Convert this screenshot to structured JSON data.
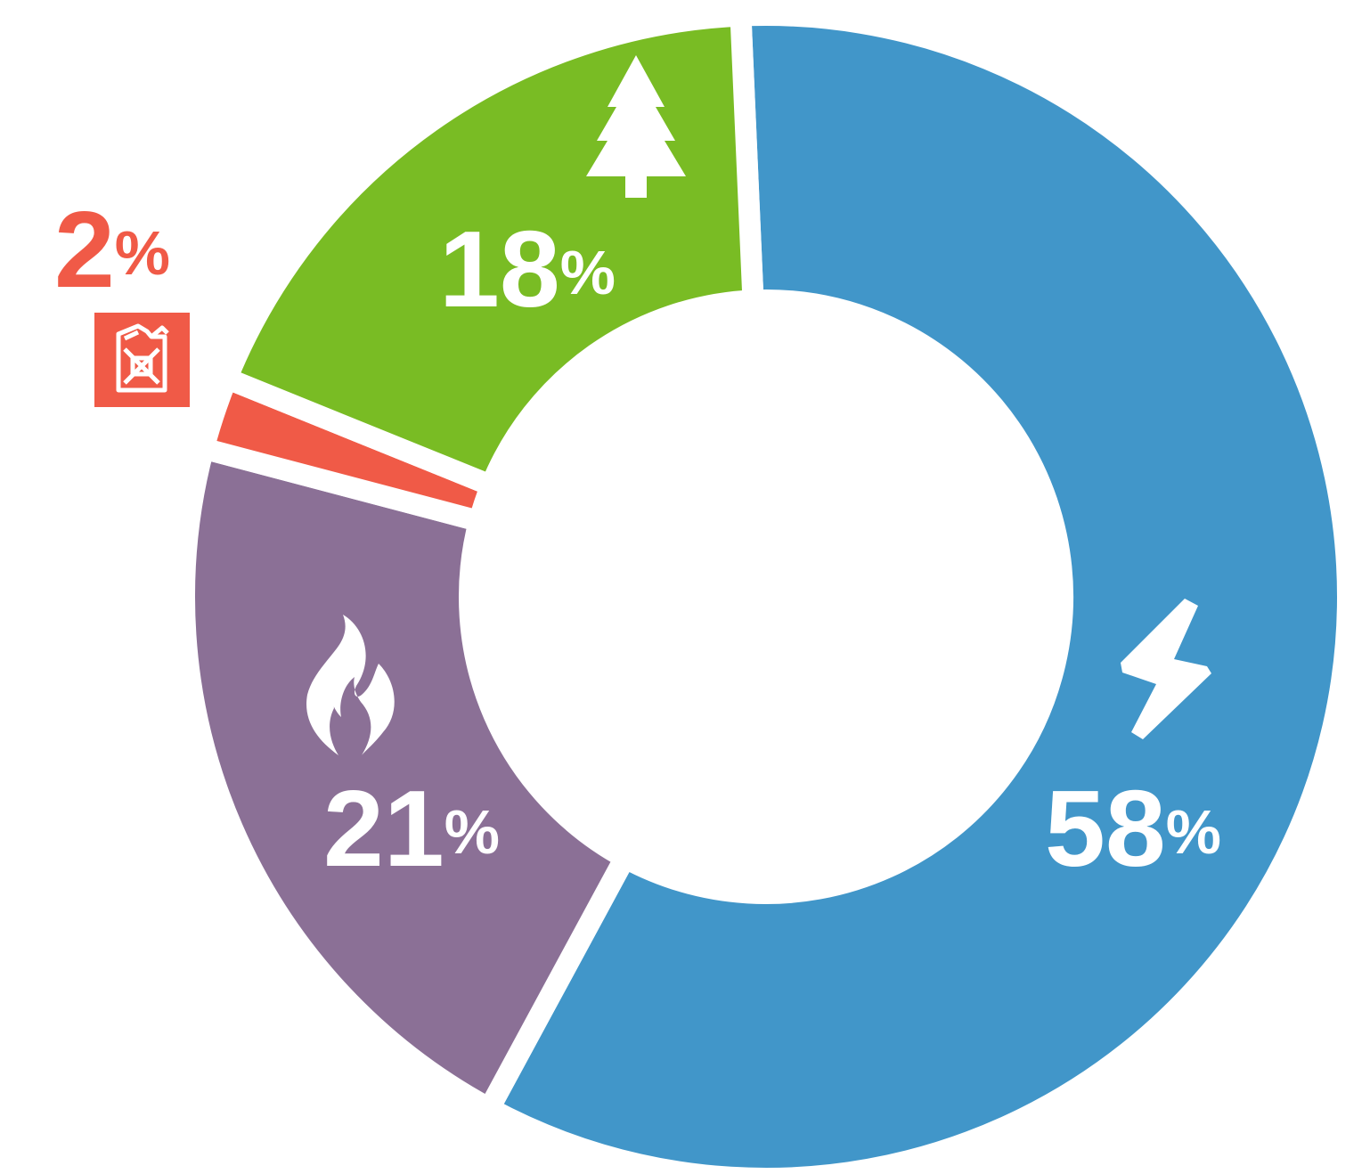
{
  "chart_data": {
    "type": "donut",
    "values": [
      58,
      21,
      2,
      18
    ],
    "value_labels": [
      "58%",
      "21%",
      "2%",
      "18%"
    ],
    "colors": [
      "#4196c9",
      "#8b7096",
      "#f05a47",
      "#79bc24"
    ]
  }
}
